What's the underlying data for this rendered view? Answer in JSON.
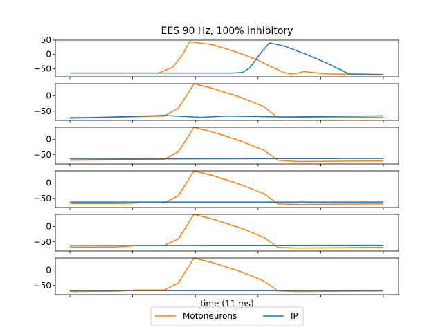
{
  "chart_data": {
    "type": "line",
    "title": "EES 90 Hz, 100% inhibitory",
    "xlabel": "time (11 ms)",
    "ylabel": "",
    "xlim": [
      0,
      11
    ],
    "legend": {
      "placement": "bottom-center",
      "entries": [
        "Motoneurons",
        "IP"
      ]
    },
    "colors": {
      "Motoneurons": "#ff7f0e",
      "IP": "#1f77b4"
    },
    "panels": [
      {
        "ylim": [
          -78,
          50
        ],
        "yticks": [
          50,
          0,
          -50
        ],
        "ytick_labels": [
          "50",
          "0",
          "−50"
        ],
        "series": [
          {
            "name": "Motoneurons",
            "x": [
              0,
              3.1,
              3.6,
              3.95,
              4.2,
              5.0,
              5.8,
              6.6,
              7.0,
              7.5,
              7.75,
              8.0,
              8.2,
              9.0,
              9.8,
              11.0
            ],
            "y": [
              -65,
              -65,
              -45,
              0,
              45,
              34,
              10,
              -20,
              -40,
              -63,
              -68,
              -65,
              -60,
              -68,
              -69,
              -70
            ]
          },
          {
            "name": "IP",
            "x": [
              0,
              5.7,
              6.05,
              6.3,
              6.75,
              7.0,
              7.5,
              8.3,
              9.0,
              9.8,
              11.0
            ],
            "y": [
              -65,
              -65,
              -63,
              -48,
              12,
              40,
              30,
              0,
              -30,
              -68,
              -70
            ]
          }
        ]
      },
      {
        "ylim": [
          -80,
          40
        ],
        "yticks": [
          0,
          -50
        ],
        "ytick_labels": [
          "0",
          "−50"
        ],
        "series": [
          {
            "name": "Motoneurons",
            "x": [
              0,
              1.5,
              3.3,
              3.8,
              4.15,
              4.35,
              5.0,
              6.0,
              6.8,
              7.25,
              8.0,
              11.0
            ],
            "y": [
              -70,
              -70,
              -66,
              -40,
              10,
              40,
              25,
              -5,
              -35,
              -68,
              -70,
              -70
            ]
          },
          {
            "name": "IP",
            "x": [
              0,
              3.3,
              4.6,
              5.5,
              7.5,
              11.0
            ],
            "y": [
              -73,
              -64,
              -70,
              -66,
              -69,
              -65
            ]
          }
        ]
      },
      {
        "ylim": [
          -80,
          40
        ],
        "yticks": [
          0,
          -50
        ],
        "ytick_labels": [
          "0",
          "−50"
        ],
        "series": [
          {
            "name": "Motoneurons",
            "x": [
              0,
              3.3,
              3.8,
              4.15,
              4.35,
              5.0,
              6.0,
              6.8,
              7.3,
              8.0,
              11.0
            ],
            "y": [
              -68,
              -66,
              -40,
              10,
              40,
              25,
              -5,
              -35,
              -68,
              -72,
              -70
            ]
          },
          {
            "name": "IP",
            "x": [
              0,
              11.0
            ],
            "y": [
              -64,
              -62
            ]
          }
        ]
      },
      {
        "ylim": [
          -80,
          40
        ],
        "yticks": [
          0,
          -50
        ],
        "ytick_labels": [
          "0",
          "−50"
        ],
        "series": [
          {
            "name": "Motoneurons",
            "x": [
              0,
              1.8,
              2.4,
              3.3,
              3.8,
              4.15,
              4.35,
              5.0,
              6.0,
              6.8,
              7.3,
              8.0,
              11.0
            ],
            "y": [
              -67,
              -67,
              -65,
              -65,
              -42,
              10,
              40,
              25,
              -5,
              -35,
              -68,
              -70,
              -68
            ]
          },
          {
            "name": "IP",
            "x": [
              0,
              11.0
            ],
            "y": [
              -62,
              -62
            ]
          }
        ]
      },
      {
        "ylim": [
          -80,
          40
        ],
        "yticks": [
          0,
          -50
        ],
        "ytick_labels": [
          "0",
          "−50"
        ],
        "series": [
          {
            "name": "Motoneurons",
            "x": [
              0,
              1.6,
              2.3,
              3.3,
              3.8,
              4.15,
              4.35,
              5.0,
              6.0,
              6.8,
              7.3,
              8.0,
              11.0
            ],
            "y": [
              -67,
              -67,
              -62,
              -62,
              -40,
              10,
              40,
              25,
              -5,
              -35,
              -68,
              -70,
              -68
            ]
          },
          {
            "name": "IP",
            "x": [
              0,
              11.0
            ],
            "y": [
              -62,
              -61
            ]
          }
        ]
      },
      {
        "ylim": [
          -80,
          40
        ],
        "yticks": [
          0,
          -50
        ],
        "ytick_labels": [
          "0",
          "−50"
        ],
        "series": [
          {
            "name": "Motoneurons",
            "x": [
              0,
              1.6,
              2.3,
              3.3,
              3.8,
              4.15,
              4.35,
              5.0,
              6.0,
              6.8,
              7.3,
              8.0,
              11.0
            ],
            "y": [
              -70,
              -69,
              -65,
              -65,
              -42,
              10,
              40,
              25,
              -5,
              -35,
              -68,
              -70,
              -68
            ]
          },
          {
            "name": "IP",
            "x": [
              0,
              11.0
            ],
            "y": [
              -66,
              -66
            ]
          }
        ]
      }
    ]
  }
}
